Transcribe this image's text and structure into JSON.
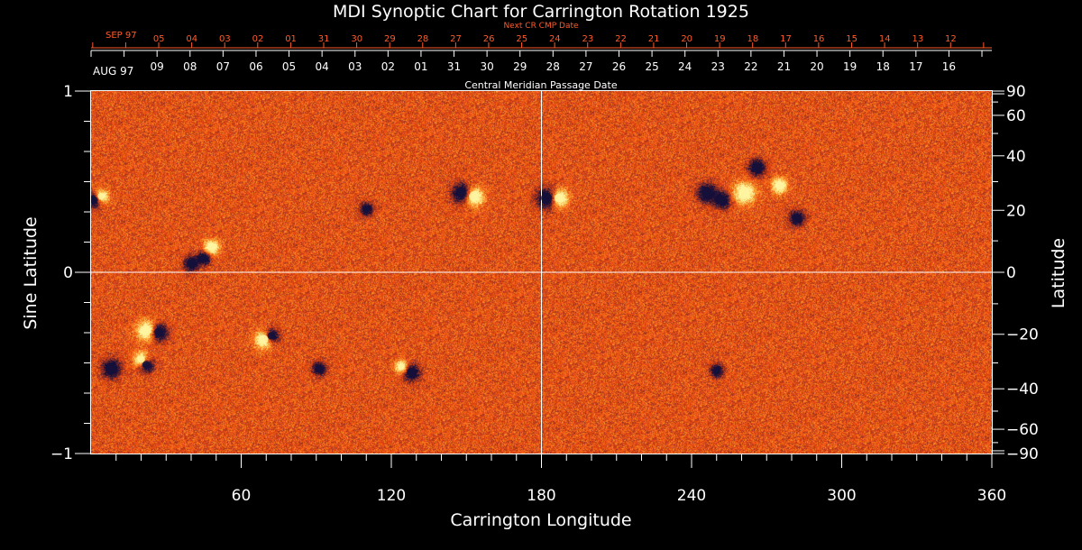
{
  "chart_data": {
    "type": "heatmap",
    "title": "MDI Synoptic Chart for Carrington Rotation 1925",
    "xlabel": "Carrington Longitude",
    "ylabel_left": "Sine Latitude",
    "ylabel_right": "Latitude",
    "xlim": [
      0,
      360
    ],
    "ylim": [
      -1,
      1
    ],
    "x_ticks": [
      60,
      120,
      180,
      240,
      300,
      360
    ],
    "y_left_ticks": [
      {
        "value": 1,
        "label": "1"
      },
      {
        "value": 0,
        "label": "0"
      },
      {
        "value": -1,
        "label": "−1"
      }
    ],
    "y_right_ticks": [
      {
        "lat": 90,
        "label": "90"
      },
      {
        "lat": 60,
        "label": "60"
      },
      {
        "lat": 40,
        "label": "40"
      },
      {
        "lat": 20,
        "label": "20"
      },
      {
        "lat": 0,
        "label": "0"
      },
      {
        "lat": -20,
        "label": "−20"
      },
      {
        "lat": -40,
        "label": "−40"
      },
      {
        "lat": -60,
        "label": "−60"
      },
      {
        "lat": -90,
        "label": "−90"
      }
    ],
    "gridlines": {
      "longitude": 180,
      "sine_latitude": 0
    },
    "cmp_axis": {
      "label": "Central Meridian Passage Date",
      "start_label": "AUG 97",
      "dates": [
        "09",
        "08",
        "07",
        "06",
        "05",
        "04",
        "03",
        "02",
        "01",
        "31",
        "30",
        "29",
        "28",
        "27",
        "26",
        "25",
        "24",
        "23",
        "22",
        "21",
        "20",
        "19",
        "18",
        "17",
        "16"
      ]
    },
    "next_cmp_axis": {
      "label": "Next CR CMP Date",
      "start_label": "SEP 97",
      "dates": [
        "05",
        "04",
        "03",
        "02",
        "01",
        "31",
        "30",
        "29",
        "28",
        "27",
        "26",
        "25",
        "24",
        "23",
        "22",
        "21",
        "20",
        "19",
        "18",
        "17",
        "16",
        "15",
        "14",
        "13",
        "12"
      ]
    },
    "colors": {
      "background": "#000000",
      "field_base": "#f04a12",
      "positive_polarity": "#fff3a0",
      "negative_polarity": "#14103a",
      "axis": "#ffffff",
      "next_axis": "#ff5a2a"
    },
    "active_regions": [
      {
        "lon": 1,
        "lat": 0.4,
        "polarity": "negative",
        "size": 1.0
      },
      {
        "lon": 4,
        "lat": 0.42,
        "polarity": "positive",
        "size": 0.8
      },
      {
        "lon": 40,
        "lat": 0.05,
        "polarity": "negative",
        "size": 1.0
      },
      {
        "lon": 48,
        "lat": 0.14,
        "polarity": "positive",
        "size": 1.0
      },
      {
        "lon": 45,
        "lat": 0.08,
        "polarity": "negative",
        "size": 0.8
      },
      {
        "lon": 110,
        "lat": 0.35,
        "polarity": "negative",
        "size": 0.7
      },
      {
        "lon": 148,
        "lat": 0.44,
        "polarity": "negative",
        "size": 1.6
      },
      {
        "lon": 153,
        "lat": 0.42,
        "polarity": "positive",
        "size": 1.5
      },
      {
        "lon": 182,
        "lat": 0.41,
        "polarity": "negative",
        "size": 1.8
      },
      {
        "lon": 187,
        "lat": 0.41,
        "polarity": "positive",
        "size": 1.4
      },
      {
        "lon": 246,
        "lat": 0.44,
        "polarity": "negative",
        "size": 1.5
      },
      {
        "lon": 252,
        "lat": 0.4,
        "polarity": "negative",
        "size": 1.2
      },
      {
        "lon": 261,
        "lat": 0.44,
        "polarity": "positive",
        "size": 1.8
      },
      {
        "lon": 266,
        "lat": 0.58,
        "polarity": "negative",
        "size": 1.2
      },
      {
        "lon": 275,
        "lat": 0.48,
        "polarity": "positive",
        "size": 1.0
      },
      {
        "lon": 282,
        "lat": 0.3,
        "polarity": "negative",
        "size": 1.0
      },
      {
        "lon": 22,
        "lat": -0.32,
        "polarity": "positive",
        "size": 1.6
      },
      {
        "lon": 27,
        "lat": -0.33,
        "polarity": "negative",
        "size": 1.3
      },
      {
        "lon": 8,
        "lat": -0.53,
        "polarity": "negative",
        "size": 1.5
      },
      {
        "lon": 20,
        "lat": -0.48,
        "polarity": "positive",
        "size": 1.0
      },
      {
        "lon": 22,
        "lat": -0.51,
        "polarity": "negative",
        "size": 1.0
      },
      {
        "lon": 69,
        "lat": -0.37,
        "polarity": "positive",
        "size": 1.4
      },
      {
        "lon": 72,
        "lat": -0.35,
        "polarity": "negative",
        "size": 1.0
      },
      {
        "lon": 91,
        "lat": -0.53,
        "polarity": "negative",
        "size": 0.8
      },
      {
        "lon": 128,
        "lat": -0.55,
        "polarity": "negative",
        "size": 1.2
      },
      {
        "lon": 124,
        "lat": -0.52,
        "polarity": "positive",
        "size": 0.7
      },
      {
        "lon": 250,
        "lat": -0.54,
        "polarity": "negative",
        "size": 0.7
      }
    ]
  }
}
